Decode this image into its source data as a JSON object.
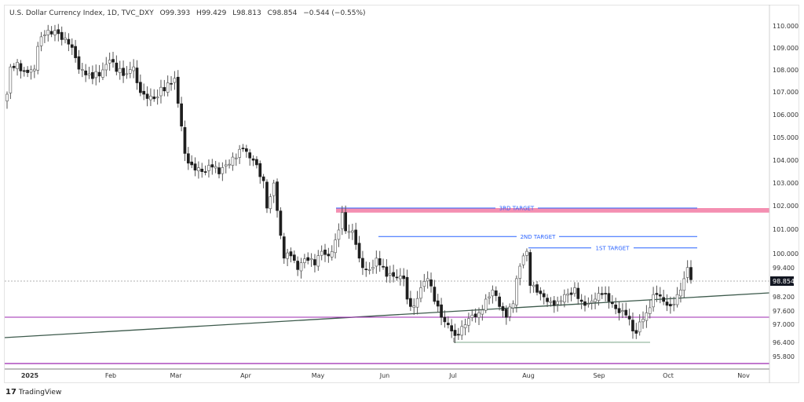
{
  "header": {
    "symbol": "U.S. Dollar Currency Index, 1D, TVC_DXY",
    "open": "O99.393",
    "high": "H99.429",
    "low": "L98.813",
    "close": "C98.854",
    "change": "−0.544 (−0.55%)"
  },
  "branding": {
    "logo": "TradingView",
    "logo_mark": "17"
  },
  "chart_data": {
    "type": "candlestick",
    "title": "U.S. Dollar Currency Index, 1D, TVC_DXY",
    "ylim": [
      95.6,
      110.3
    ],
    "price_ticks": [
      "110.000",
      "109.000",
      "108.000",
      "107.000",
      "106.000",
      "105.000",
      "104.000",
      "103.000",
      "102.000",
      "101.000",
      "100.000",
      "99.400",
      "98.200",
      "97.600",
      "97.000",
      "96.400",
      "95.800"
    ],
    "price_tick_values": [
      110,
      109,
      108,
      107,
      106,
      105,
      104,
      103,
      102,
      101,
      100,
      99.4,
      98.2,
      97.6,
      97.0,
      96.4,
      95.8
    ],
    "time_ticks": [
      "2025",
      "Feb",
      "Mar",
      "Apr",
      "May",
      "Jun",
      "Jul",
      "Aug",
      "Sep",
      "Oct",
      "Nov"
    ],
    "time_tick_days": [
      6,
      30,
      49,
      70,
      91,
      110,
      130,
      152,
      173,
      193,
      215
    ],
    "last_price": "98.854",
    "last_price_value": 98.854,
    "close_anchors": [
      [
        0,
        107.0
      ],
      [
        1,
        108.2
      ],
      [
        3,
        108.4
      ],
      [
        5,
        108.0
      ],
      [
        8,
        108.1
      ],
      [
        9,
        109.1
      ],
      [
        11,
        109.6
      ],
      [
        14,
        109.8
      ],
      [
        16,
        109.4
      ],
      [
        18,
        109.2
      ],
      [
        20,
        108.6
      ],
      [
        21,
        108.1
      ],
      [
        24,
        107.9
      ],
      [
        27,
        107.8
      ],
      [
        30,
        108.5
      ],
      [
        32,
        108.0
      ],
      [
        35,
        107.9
      ],
      [
        37,
        108.2
      ],
      [
        38,
        107.5
      ],
      [
        40,
        107.0
      ],
      [
        43,
        106.8
      ],
      [
        47,
        107.5
      ],
      [
        49,
        107.7
      ],
      [
        50,
        106.6
      ],
      [
        51,
        105.6
      ],
      [
        52,
        104.4
      ],
      [
        54,
        103.9
      ],
      [
        57,
        103.6
      ],
      [
        60,
        103.8
      ],
      [
        62,
        103.5
      ],
      [
        64,
        103.9
      ],
      [
        67,
        104.2
      ],
      [
        69,
        104.6
      ],
      [
        71,
        104.2
      ],
      [
        72,
        104.1
      ],
      [
        73,
        103.9
      ],
      [
        75,
        103.2
      ],
      [
        76,
        102.0
      ],
      [
        78,
        103.1
      ],
      [
        80,
        100.8
      ],
      [
        77,
        102.5
      ],
      [
        81,
        99.8
      ],
      [
        83,
        99.9
      ],
      [
        85,
        99.3
      ],
      [
        86,
        99.6
      ],
      [
        88,
        99.7
      ],
      [
        90,
        99.5
      ],
      [
        92,
        100.1
      ],
      [
        94,
        99.9
      ],
      [
        96,
        100.6
      ],
      [
        98,
        101.8
      ],
      [
        99,
        101.0
      ],
      [
        101,
        101.0
      ],
      [
        102,
        100.4
      ],
      [
        103,
        99.8
      ],
      [
        105,
        99.3
      ],
      [
        107,
        99.4
      ],
      [
        108,
        99.8
      ],
      [
        109,
        99.5
      ],
      [
        111,
        99.0
      ],
      [
        113,
        99.0
      ],
      [
        116,
        98.9
      ],
      [
        117,
        98.0
      ],
      [
        119,
        97.7
      ],
      [
        121,
        98.5
      ],
      [
        123,
        98.9
      ],
      [
        125,
        97.9
      ],
      [
        127,
        97.2
      ],
      [
        130,
        96.6
      ],
      [
        131,
        96.4
      ],
      [
        133,
        96.8
      ],
      [
        136,
        97.3
      ],
      [
        138,
        97.4
      ],
      [
        140,
        98.0
      ],
      [
        142,
        98.4
      ],
      [
        145,
        97.5
      ],
      [
        146,
        97.2
      ],
      [
        148,
        97.8
      ],
      [
        149,
        98.9
      ],
      [
        151,
        99.9
      ],
      [
        152,
        100.1
      ],
      [
        153,
        98.6
      ],
      [
        155,
        98.3
      ],
      [
        157,
        98.1
      ],
      [
        159,
        97.9
      ],
      [
        161,
        97.9
      ],
      [
        163,
        98.2
      ],
      [
        165,
        98.2
      ],
      [
        166,
        98.5
      ],
      [
        168,
        97.9
      ],
      [
        170,
        97.8
      ],
      [
        172,
        98.0
      ],
      [
        174,
        98.2
      ],
      [
        176,
        97.9
      ],
      [
        179,
        97.4
      ],
      [
        181,
        97.3
      ],
      [
        183,
        96.6
      ],
      [
        184,
        96.5
      ],
      [
        185,
        97.0
      ],
      [
        187,
        97.4
      ],
      [
        189,
        98.2
      ],
      [
        190,
        98.2
      ],
      [
        192,
        97.9
      ],
      [
        194,
        97.7
      ],
      [
        196,
        98.2
      ],
      [
        198,
        98.9
      ],
      [
        199,
        99.39
      ],
      [
        200,
        98.854
      ]
    ],
    "annotations": [
      {
        "label": "3RD TARGET",
        "price": 102.0,
        "color": "#2962ff"
      },
      {
        "label": "2ND TARGET",
        "price": 100.75,
        "color": "#2962ff"
      },
      {
        "label": "1ST TARGET",
        "price": 100.25,
        "color": "#2962ff"
      }
    ],
    "zone": {
      "from": 101.8,
      "to": 102.0,
      "color": "#f48fb1"
    },
    "trendline": {
      "color": "#3d5a4c"
    },
    "horizontal_levels": [
      {
        "price": 97.45,
        "color": "#9c27b0"
      },
      {
        "price": 95.4,
        "color": "#9c27b0"
      },
      {
        "price": 96.3,
        "color": "#81a98e"
      }
    ],
    "colors": {
      "bull": "#ffffff",
      "bear": "#1e1e1e",
      "wick": "#555555",
      "axis_label_bg": "#131722"
    }
  }
}
